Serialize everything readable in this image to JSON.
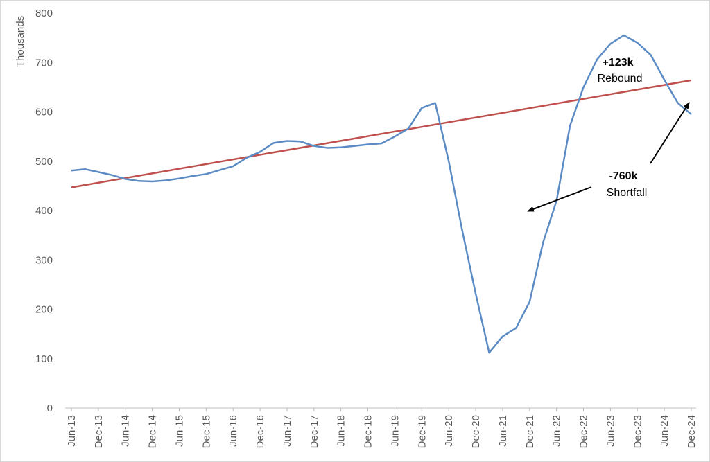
{
  "chart_data": {
    "type": "line",
    "ylabel": "Thousands",
    "ylim": [
      0,
      800
    ],
    "yticks": [
      0,
      100,
      200,
      300,
      400,
      500,
      600,
      700,
      800
    ],
    "x_tick_labels": [
      "Jun-13",
      "Dec-13",
      "Jun-14",
      "Dec-14",
      "Jun-15",
      "Dec-15",
      "Jun-16",
      "Dec-16",
      "Jun-17",
      "Dec-17",
      "Jun-18",
      "Dec-18",
      "Jun-19",
      "Dec-19",
      "Jun-20",
      "Dec-20",
      "Jun-21",
      "Dec-21",
      "Jun-22",
      "Dec-22",
      "Jun-23",
      "Dec-23",
      "Jun-24",
      "Dec-24"
    ],
    "grid": false,
    "series": [
      {
        "color": "#5b8bc5",
        "values": [
          481,
          484,
          478,
          472,
          464,
          460,
          459,
          461,
          465,
          470,
          474,
          482,
          490,
          507,
          519,
          537,
          541,
          540,
          531,
          527,
          528,
          531,
          534,
          536,
          550,
          566,
          608,
          618,
          500,
          360,
          232,
          112,
          145,
          162,
          215,
          335,
          420,
          572,
          650,
          706,
          738,
          755,
          740,
          715,
          665,
          618,
          595
        ]
      },
      {
        "color": "#c0504d",
        "trend": true,
        "start": 447,
        "end": 664
      }
    ],
    "annotations": [
      {
        "bold": "+123k",
        "text": "Rebound"
      },
      {
        "bold": "-760k",
        "text": "Shortfall"
      }
    ]
  }
}
